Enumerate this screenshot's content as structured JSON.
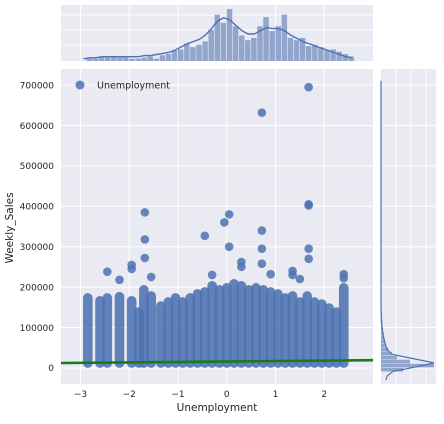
{
  "chart_data": {
    "type": "scatter",
    "title": "",
    "xlabel": "Unemployment",
    "ylabel": "Weekly_Sales",
    "xlim": [
      -3.4,
      3.0
    ],
    "ylim": [
      -40000,
      740000
    ],
    "x_ticks": [
      -3,
      -2,
      -1,
      0,
      1,
      2
    ],
    "y_ticks": [
      0,
      100000,
      200000,
      300000,
      400000,
      500000,
      600000,
      700000
    ],
    "grid": true,
    "legend": {
      "position": "top-left",
      "entries": [
        "Unemployment"
      ]
    },
    "colors": {
      "points": "#4c72b0",
      "regression_line": "#1a7a1a",
      "background": "#eaeaf2",
      "hist": "#92a5cc"
    },
    "regression_line": {
      "x": [
        -3.4,
        3.0
      ],
      "y": [
        12000,
        19000
      ]
    },
    "strip_columns": [
      {
        "x": -2.85,
        "top": 185000
      },
      {
        "x": -2.6,
        "top": 178000
      },
      {
        "x": -2.45,
        "top": 185000
      },
      {
        "x": -2.2,
        "top": 188000
      },
      {
        "x": -1.95,
        "top": 178000
      },
      {
        "x": -1.8,
        "top": 150000
      },
      {
        "x": -1.7,
        "top": 205000
      },
      {
        "x": -1.55,
        "top": 190000
      },
      {
        "x": -1.35,
        "top": 165000
      },
      {
        "x": -1.2,
        "top": 175000
      },
      {
        "x": -1.05,
        "top": 185000
      },
      {
        "x": -0.9,
        "top": 175000
      },
      {
        "x": -0.75,
        "top": 185000
      },
      {
        "x": -0.6,
        "top": 195000
      },
      {
        "x": -0.45,
        "top": 200000
      },
      {
        "x": -0.3,
        "top": 215000
      },
      {
        "x": -0.15,
        "top": 205000
      },
      {
        "x": 0.0,
        "top": 210000
      },
      {
        "x": 0.15,
        "top": 220000
      },
      {
        "x": 0.3,
        "top": 215000
      },
      {
        "x": 0.45,
        "top": 205000
      },
      {
        "x": 0.6,
        "top": 210000
      },
      {
        "x": 0.75,
        "top": 205000
      },
      {
        "x": 0.9,
        "top": 200000
      },
      {
        "x": 1.05,
        "top": 195000
      },
      {
        "x": 1.2,
        "top": 185000
      },
      {
        "x": 1.35,
        "top": 190000
      },
      {
        "x": 1.5,
        "top": 175000
      },
      {
        "x": 1.65,
        "top": 190000
      },
      {
        "x": 1.8,
        "top": 175000
      },
      {
        "x": 1.95,
        "top": 170000
      },
      {
        "x": 2.1,
        "top": 160000
      },
      {
        "x": 2.25,
        "top": 150000
      },
      {
        "x": 2.4,
        "top": 210000
      }
    ],
    "outlier_points": [
      {
        "x": 1.68,
        "y": 695000
      },
      {
        "x": 0.72,
        "y": 632000
      },
      {
        "x": 1.68,
        "y": 405000
      },
      {
        "x": 1.68,
        "y": 402000
      },
      {
        "x": -1.68,
        "y": 385000
      },
      {
        "x": 0.05,
        "y": 380000
      },
      {
        "x": -0.05,
        "y": 360000
      },
      {
        "x": 0.72,
        "y": 340000
      },
      {
        "x": -0.45,
        "y": 327000
      },
      {
        "x": -1.68,
        "y": 318000
      },
      {
        "x": 0.05,
        "y": 300000
      },
      {
        "x": 0.72,
        "y": 295000
      },
      {
        "x": 1.68,
        "y": 295000
      },
      {
        "x": -1.68,
        "y": 272000
      },
      {
        "x": -1.95,
        "y": 255000
      },
      {
        "x": -1.95,
        "y": 245000
      },
      {
        "x": 0.3,
        "y": 262000
      },
      {
        "x": 0.3,
        "y": 250000
      },
      {
        "x": 1.68,
        "y": 270000
      },
      {
        "x": 0.72,
        "y": 258000
      },
      {
        "x": 1.35,
        "y": 240000
      },
      {
        "x": 2.4,
        "y": 232000
      },
      {
        "x": 2.4,
        "y": 222000
      },
      {
        "x": -2.45,
        "y": 238000
      },
      {
        "x": -1.55,
        "y": 225000
      },
      {
        "x": 1.35,
        "y": 230000
      },
      {
        "x": -0.3,
        "y": 230000
      },
      {
        "x": 0.9,
        "y": 232000
      },
      {
        "x": -2.2,
        "y": 218000
      },
      {
        "x": 1.5,
        "y": 220000
      }
    ],
    "x_histogram": {
      "bin_edges_start": -3.0,
      "bin_width": 0.125,
      "counts": [
        0,
        2,
        2,
        3,
        3,
        4,
        3,
        3,
        2,
        2,
        3,
        4,
        2,
        5,
        6,
        9,
        10,
        15,
        12,
        14,
        17,
        27,
        40,
        33,
        45,
        30,
        22,
        18,
        20,
        30,
        38,
        26,
        30,
        40,
        20,
        18,
        20,
        13,
        14,
        12,
        9,
        10,
        8,
        6,
        4
      ],
      "kde": [
        2,
        3,
        3,
        4,
        4,
        4,
        4,
        4,
        4,
        4,
        5,
        5,
        6,
        7,
        8,
        10,
        13,
        16,
        18,
        20,
        24,
        30,
        37,
        40,
        38,
        33,
        28,
        25,
        25,
        28,
        31,
        30,
        30,
        28,
        24,
        21,
        18,
        16,
        14,
        12,
        10,
        8,
        6,
        4,
        3
      ]
    },
    "y_histogram": {
      "bin_edges_start": -10000,
      "bin_width": 10000,
      "counts": [
        42,
        100,
        55,
        30,
        20,
        14,
        10,
        8,
        6,
        5,
        4,
        3,
        3,
        2,
        2,
        1,
        1,
        1,
        1,
        1,
        1
      ],
      "kde_peak_y": 12000
    }
  }
}
